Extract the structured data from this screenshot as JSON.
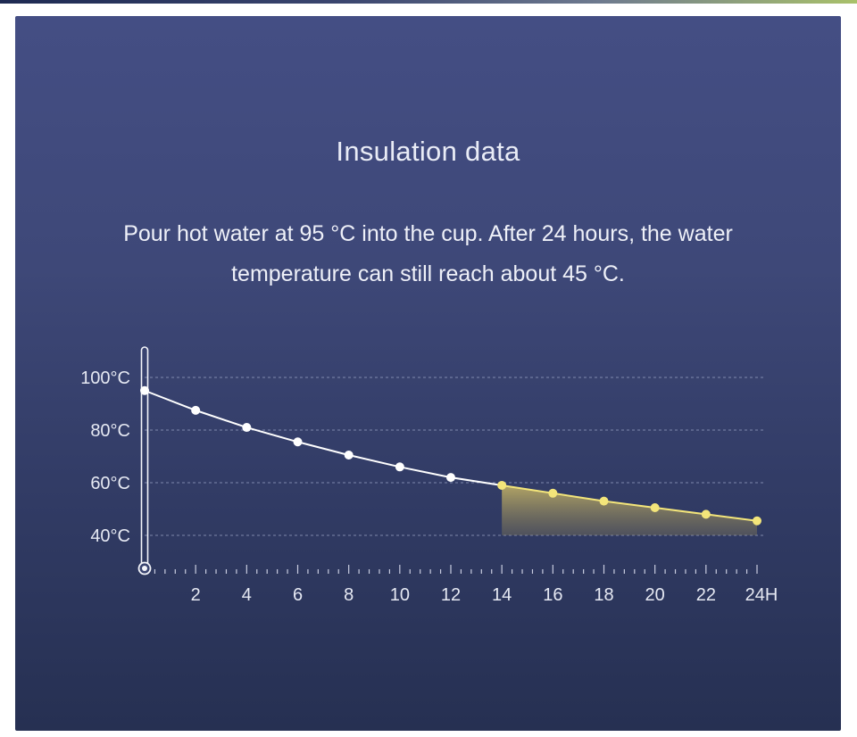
{
  "header": {
    "title": "Insulation data",
    "description": "Pour hot water at 95 °C into the cup. After 24 hours, the water temperature can still reach about 45 °C."
  },
  "colors": {
    "panel_top": "#444e84",
    "panel_bottom": "#263052",
    "line_white": "#ffffff",
    "highlight_yellow": "#f3e57a",
    "grid": "#9aa3c4"
  },
  "chart_data": {
    "type": "line",
    "x": [
      0,
      2,
      4,
      6,
      8,
      10,
      12,
      14,
      16,
      18,
      20,
      22,
      24
    ],
    "values": [
      95,
      87.5,
      81,
      75.5,
      70.5,
      66,
      62,
      59,
      56,
      53,
      50.5,
      48,
      45.5
    ],
    "highlight_from_x": 14,
    "xlim": [
      0,
      24
    ],
    "ylim": [
      30,
      100
    ],
    "y_ticks": [
      100,
      80,
      60,
      40
    ],
    "y_tick_labels": [
      "100°C",
      "80°C",
      "60°C",
      "40°C"
    ],
    "x_ticks": [
      2,
      4,
      6,
      8,
      10,
      12,
      14,
      16,
      18,
      20,
      22,
      24
    ],
    "x_tick_labels": [
      "2",
      "4",
      "6",
      "8",
      "10",
      "12",
      "14",
      "16",
      "18",
      "20",
      "22",
      "24H"
    ],
    "grid": "horizontal-dashed",
    "legend": "none"
  }
}
